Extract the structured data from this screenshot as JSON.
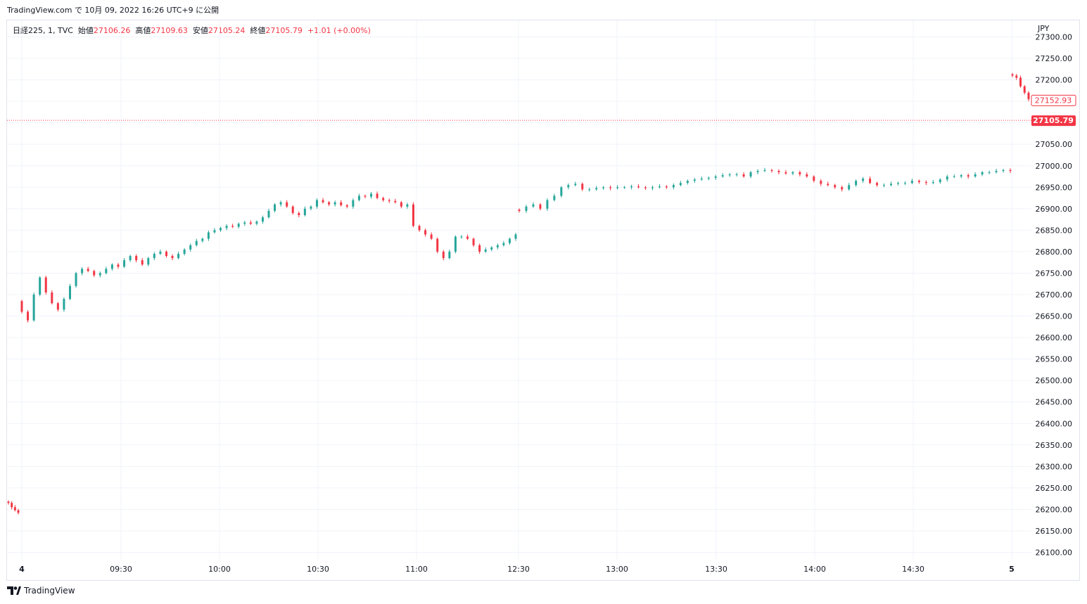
{
  "header": {
    "caption": "TradingView.com で 10月 09, 2022 16:26 UTC+9 に公開"
  },
  "legend": {
    "symbol": "日経225, 1, TVC",
    "open_label": "始値",
    "open_value": "27106.26",
    "high_label": "高値",
    "high_value": "27109.63",
    "low_label": "安値",
    "low_value": "27105.24",
    "close_label": "終値",
    "close_value": "27105.79",
    "change": "+1.01 (+0.00%)"
  },
  "footer": {
    "brand": "TradingView"
  },
  "colors": {
    "up": "#26a69a",
    "down": "#f23645",
    "grid": "#f0f3fa",
    "axis_text": "#131722"
  },
  "chart_data": {
    "type": "candlestick",
    "currency": "JPY",
    "y_ticks": [
      "26100.00",
      "26150.00",
      "26200.00",
      "26250.00",
      "26300.00",
      "26350.00",
      "26400.00",
      "26450.00",
      "26500.00",
      "26550.00",
      "26600.00",
      "26650.00",
      "26700.00",
      "26750.00",
      "26800.00",
      "26850.00",
      "26900.00",
      "26950.00",
      "27000.00",
      "27050.00",
      "27100.00",
      "27150.00",
      "27200.00",
      "27250.00",
      "27300.00"
    ],
    "x_ticks": [
      "4",
      "09:30",
      "10:00",
      "10:30",
      "11:00",
      "12:30",
      "13:00",
      "13:30",
      "14:00",
      "14:30",
      "5"
    ],
    "ylim": [
      26080,
      27310
    ],
    "last_price_label": "27105.79",
    "prev_close_label": "27152.93",
    "segments": [
      {
        "name": "pre",
        "points": [
          26215,
          26205,
          26198,
          26192
        ]
      },
      {
        "name": "morning",
        "points": [
          26660,
          26640,
          26700,
          26740,
          26705,
          26680,
          26665,
          26690,
          26720,
          26750,
          26760,
          26755,
          26745,
          26750,
          26760,
          26770,
          26765,
          26780,
          26790,
          26780,
          26770,
          26785,
          26795,
          26800,
          26790,
          26785,
          26795,
          26805,
          26815,
          26825,
          26830,
          26845,
          26850,
          26855,
          26860,
          26858,
          26865,
          26868,
          26865,
          26870,
          26880,
          26895,
          26910,
          26915,
          26905,
          26890,
          26885,
          26900,
          26905,
          26920,
          26915,
          26910,
          26915,
          26908,
          26905,
          26920,
          26930,
          26928,
          26935,
          26925,
          26920,
          26918,
          26915,
          26905,
          26910,
          26860,
          26850,
          26840,
          26830,
          26800,
          26785,
          26800,
          26835,
          26835,
          26830,
          26815,
          26800,
          26805,
          26810,
          26815,
          26820,
          26830,
          26840
        ]
      },
      {
        "name": "afternoon",
        "points": [
          26895,
          26905,
          26910,
          26900,
          26920,
          26930,
          26950,
          26955,
          26958,
          26945,
          26945,
          26948,
          26950,
          26948,
          26950,
          26950,
          26952,
          26950,
          26948,
          26950,
          26952,
          26950,
          26955,
          26960,
          26965,
          26968,
          26970,
          26972,
          26975,
          26978,
          26980,
          26980,
          26975,
          26985,
          26988,
          26990,
          26988,
          26985,
          26982,
          26985,
          26980,
          26975,
          26965,
          26958,
          26955,
          26950,
          26945,
          26955,
          26965,
          26970,
          26960,
          26955,
          26955,
          26958,
          26960,
          26960,
          26965,
          26962,
          26960,
          26962,
          26968,
          26975,
          26975,
          26978,
          26975,
          26980,
          26985,
          26985,
          26988,
          26990,
          26988
        ]
      },
      {
        "name": "next",
        "points": [
          27210,
          27205,
          27185,
          27170,
          27155
        ]
      }
    ]
  }
}
